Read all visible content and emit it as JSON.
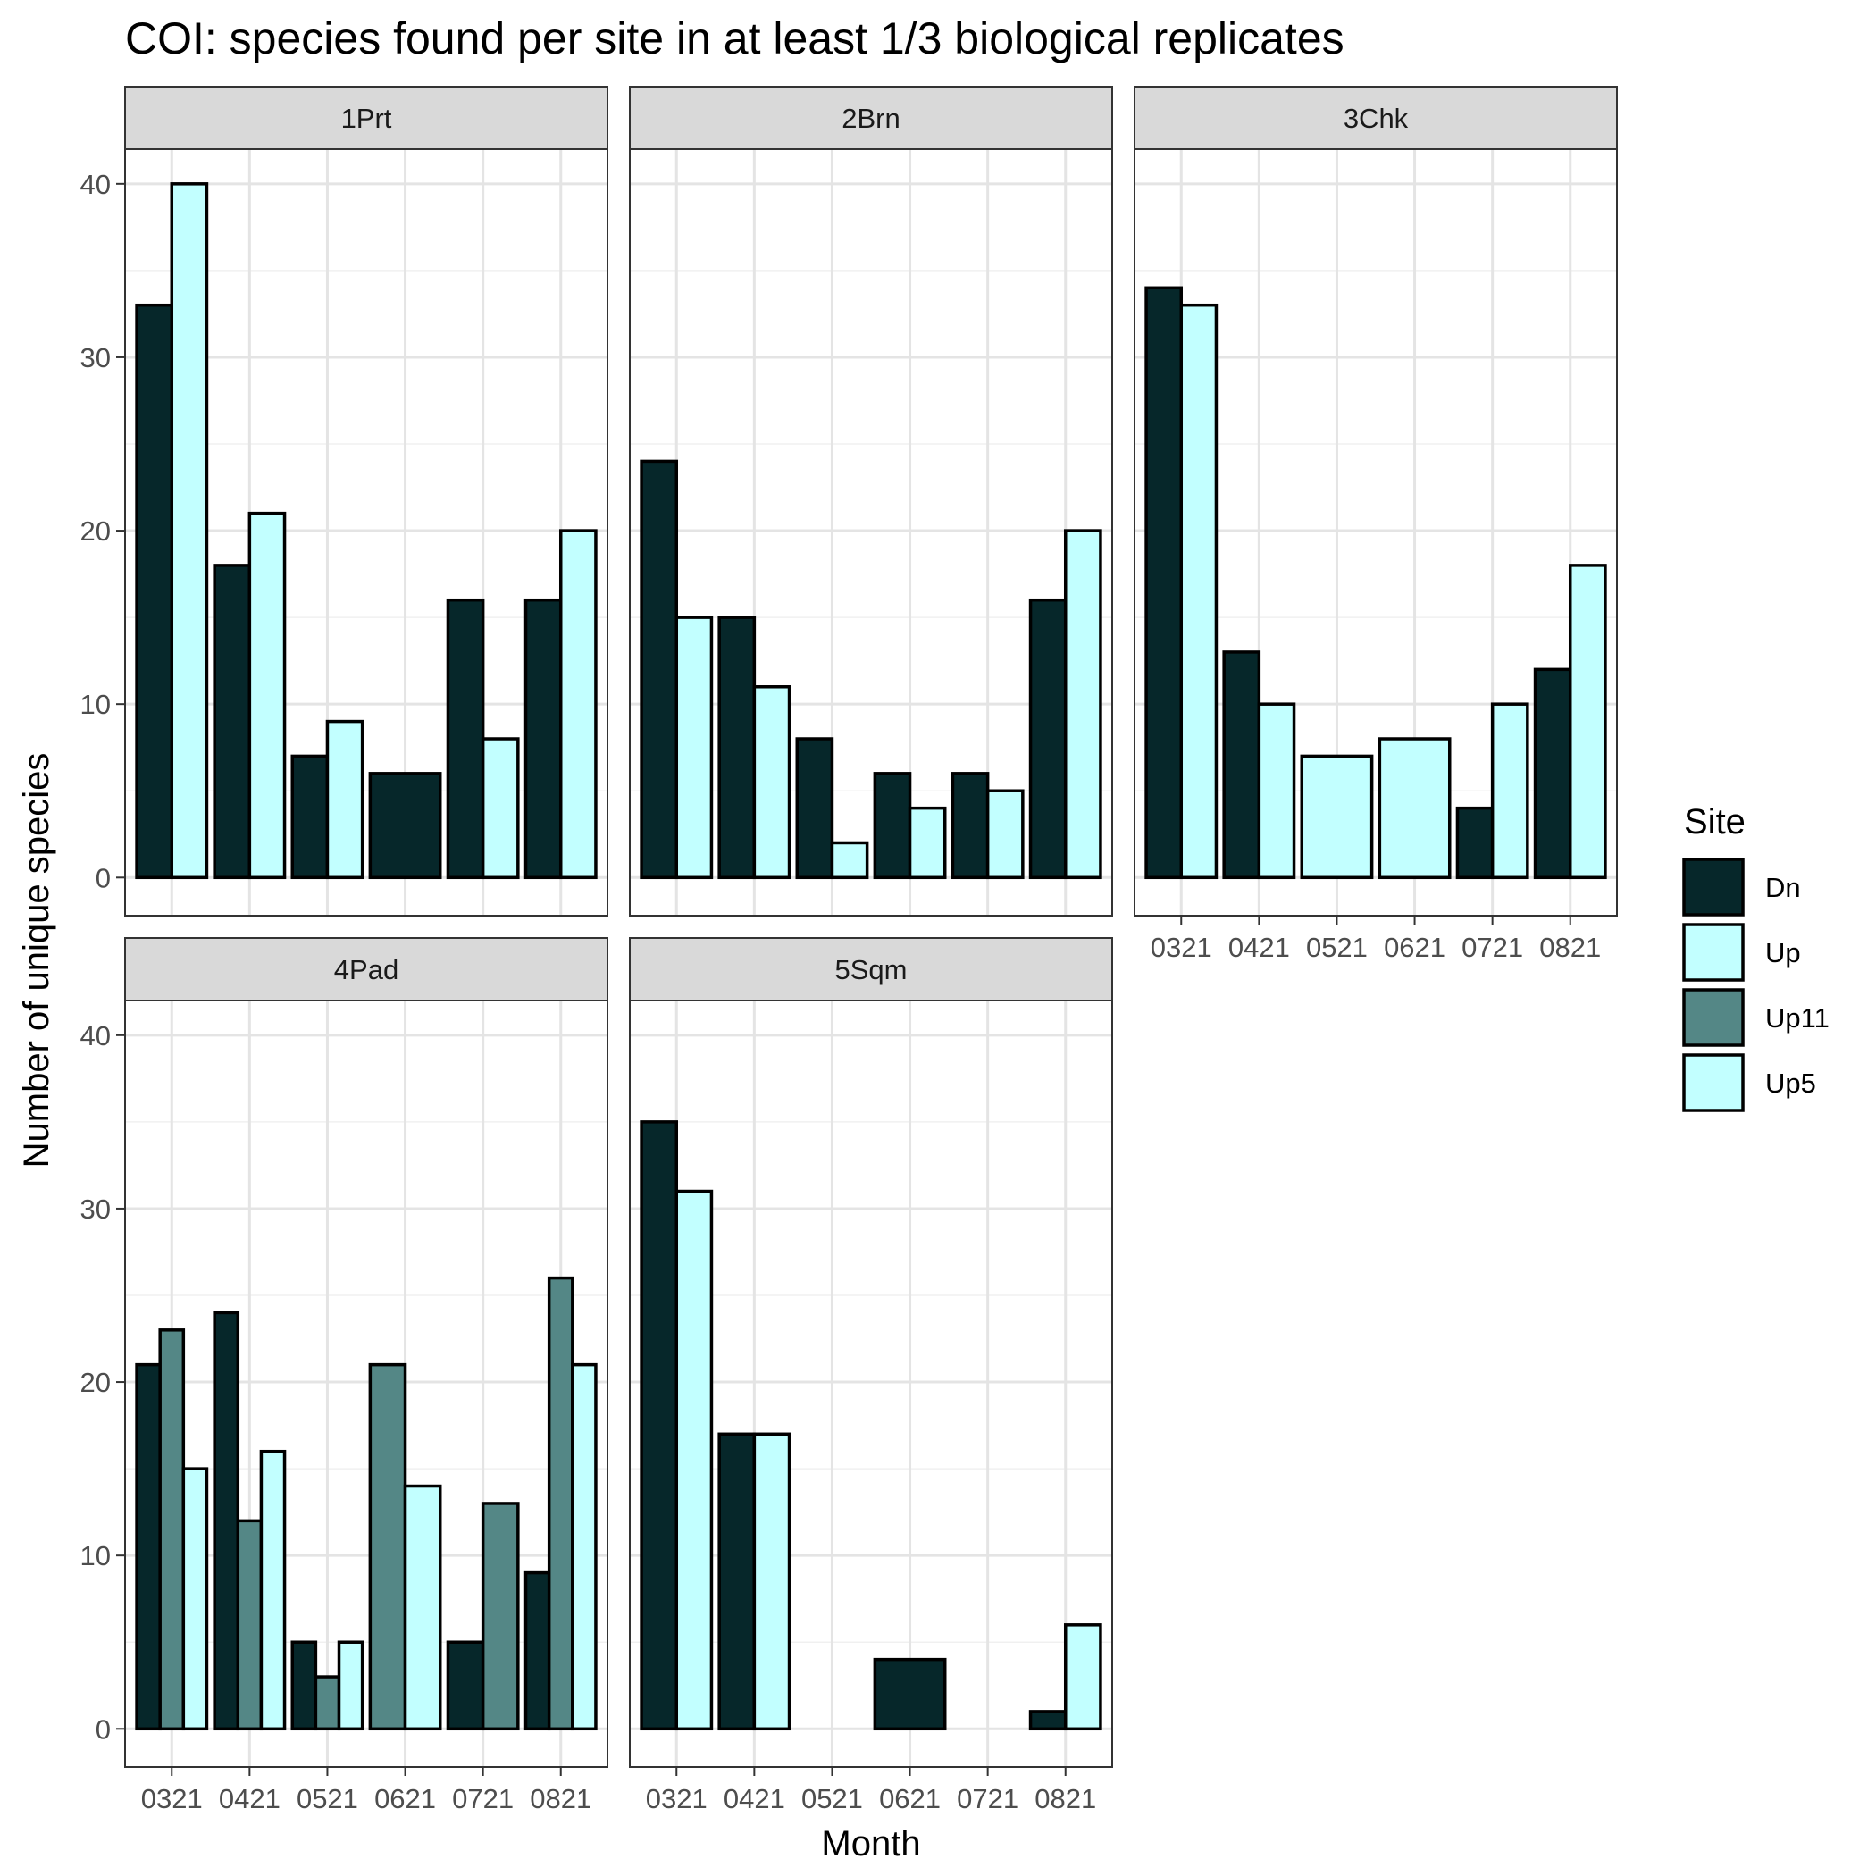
{
  "chart_data": {
    "type": "bar",
    "title": "COI: species found per site in at least 1/3 biological replicates",
    "xlabel": "Month",
    "ylabel": "Number of unique species",
    "ylim": [
      0,
      42
    ],
    "yticks": [
      "0",
      "10",
      "20",
      "30",
      "40"
    ],
    "grid": true,
    "legend_placement": "right",
    "categories": [
      "0321",
      "0421",
      "0521",
      "0621",
      "0721",
      "0821"
    ],
    "legend": {
      "title": "Site",
      "entries": [
        {
          "name": "Dn",
          "color": "#06272A"
        },
        {
          "name": "Up",
          "color": "#C2FFFF"
        },
        {
          "name": "Up11",
          "color": "#548786"
        },
        {
          "name": "Up5",
          "color": "#C2FFFF"
        }
      ]
    },
    "panels": [
      {
        "label": "1Prt",
        "groups": [
          {
            "month": "0321",
            "bars": [
              {
                "site": "Dn",
                "value": 33
              },
              {
                "site": "Up",
                "value": 40
              }
            ]
          },
          {
            "month": "0421",
            "bars": [
              {
                "site": "Dn",
                "value": 18
              },
              {
                "site": "Up",
                "value": 21
              }
            ]
          },
          {
            "month": "0521",
            "bars": [
              {
                "site": "Dn",
                "value": 7
              },
              {
                "site": "Up",
                "value": 9
              }
            ]
          },
          {
            "month": "0621",
            "bars": [
              {
                "site": "Dn",
                "value": 6
              }
            ]
          },
          {
            "month": "0721",
            "bars": [
              {
                "site": "Dn",
                "value": 16
              },
              {
                "site": "Up",
                "value": 8
              }
            ]
          },
          {
            "month": "0821",
            "bars": [
              {
                "site": "Dn",
                "value": 16
              },
              {
                "site": "Up",
                "value": 20
              }
            ]
          }
        ]
      },
      {
        "label": "2Brn",
        "groups": [
          {
            "month": "0321",
            "bars": [
              {
                "site": "Dn",
                "value": 24
              },
              {
                "site": "Up",
                "value": 15
              }
            ]
          },
          {
            "month": "0421",
            "bars": [
              {
                "site": "Dn",
                "value": 15
              },
              {
                "site": "Up",
                "value": 11
              }
            ]
          },
          {
            "month": "0521",
            "bars": [
              {
                "site": "Dn",
                "value": 8
              },
              {
                "site": "Up",
                "value": 2
              }
            ]
          },
          {
            "month": "0621",
            "bars": [
              {
                "site": "Dn",
                "value": 6
              },
              {
                "site": "Up",
                "value": 4
              }
            ]
          },
          {
            "month": "0721",
            "bars": [
              {
                "site": "Dn",
                "value": 6
              },
              {
                "site": "Up",
                "value": 5
              }
            ]
          },
          {
            "month": "0821",
            "bars": [
              {
                "site": "Dn",
                "value": 16
              },
              {
                "site": "Up",
                "value": 20
              }
            ]
          }
        ]
      },
      {
        "label": "3Chk",
        "groups": [
          {
            "month": "0321",
            "bars": [
              {
                "site": "Dn",
                "value": 34
              },
              {
                "site": "Up",
                "value": 33
              }
            ]
          },
          {
            "month": "0421",
            "bars": [
              {
                "site": "Dn",
                "value": 13
              },
              {
                "site": "Up",
                "value": 10
              }
            ]
          },
          {
            "month": "0521",
            "bars": [
              {
                "site": "Up",
                "value": 7
              }
            ]
          },
          {
            "month": "0621",
            "bars": [
              {
                "site": "Up",
                "value": 8
              }
            ]
          },
          {
            "month": "0721",
            "bars": [
              {
                "site": "Dn",
                "value": 4
              },
              {
                "site": "Up",
                "value": 10
              }
            ]
          },
          {
            "month": "0821",
            "bars": [
              {
                "site": "Dn",
                "value": 12
              },
              {
                "site": "Up",
                "value": 18
              }
            ]
          }
        ]
      },
      {
        "label": "4Pad",
        "groups": [
          {
            "month": "0321",
            "bars": [
              {
                "site": "Dn",
                "value": 21
              },
              {
                "site": "Up11",
                "value": 23
              },
              {
                "site": "Up5",
                "value": 15
              }
            ]
          },
          {
            "month": "0421",
            "bars": [
              {
                "site": "Dn",
                "value": 24
              },
              {
                "site": "Up11",
                "value": 12
              },
              {
                "site": "Up5",
                "value": 16
              }
            ]
          },
          {
            "month": "0521",
            "bars": [
              {
                "site": "Dn",
                "value": 5
              },
              {
                "site": "Up11",
                "value": 3
              },
              {
                "site": "Up5",
                "value": 5
              }
            ]
          },
          {
            "month": "0621",
            "bars": [
              {
                "site": "Up11",
                "value": 21
              },
              {
                "site": "Up5",
                "value": 14
              }
            ]
          },
          {
            "month": "0721",
            "bars": [
              {
                "site": "Dn",
                "value": 5
              },
              {
                "site": "Up11",
                "value": 13
              }
            ]
          },
          {
            "month": "0821",
            "bars": [
              {
                "site": "Dn",
                "value": 9
              },
              {
                "site": "Up11",
                "value": 26
              },
              {
                "site": "Up5",
                "value": 21
              }
            ]
          }
        ]
      },
      {
        "label": "5Sqm",
        "groups": [
          {
            "month": "0321",
            "bars": [
              {
                "site": "Dn",
                "value": 35
              },
              {
                "site": "Up",
                "value": 31
              }
            ]
          },
          {
            "month": "0421",
            "bars": [
              {
                "site": "Dn",
                "value": 17
              },
              {
                "site": "Up",
                "value": 17
              }
            ]
          },
          {
            "month": "0621",
            "bars": [
              {
                "site": "Dn",
                "value": 4
              }
            ]
          },
          {
            "month": "0821",
            "bars": [
              {
                "site": "Dn",
                "value": 1
              },
              {
                "site": "Up",
                "value": 6
              }
            ]
          }
        ]
      }
    ]
  }
}
